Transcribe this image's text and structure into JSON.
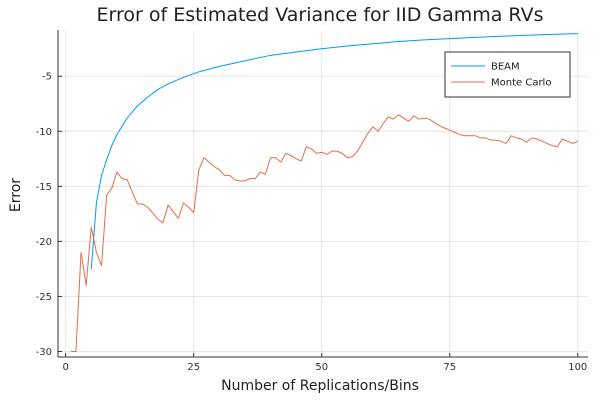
{
  "chart_data": {
    "type": "line",
    "title": "Error of Estimated Variance for IID Gamma RVs",
    "xlabel": "Number of Replications/Bins",
    "ylabel": "Error",
    "xlim": [
      -1.5,
      102
    ],
    "ylim": [
      -30.5,
      -0.8
    ],
    "xticks": [
      0,
      25,
      50,
      75,
      100
    ],
    "yticks": [
      -30,
      -25,
      -20,
      -15,
      -10,
      -5
    ],
    "grid": true,
    "legend": "top-right",
    "series": [
      {
        "name": "BEAM",
        "color": "#009AFA",
        "x": [
          5,
          6,
          7,
          8,
          9,
          10,
          12,
          14,
          16,
          18,
          20,
          23,
          26,
          30,
          35,
          40,
          45,
          50,
          55,
          60,
          65,
          70,
          75,
          80,
          85,
          90,
          95,
          100
        ],
        "y": [
          -22.5,
          -16.5,
          -14.0,
          -12.6,
          -11.3,
          -10.3,
          -8.8,
          -7.7,
          -6.9,
          -6.2,
          -5.7,
          -5.1,
          -4.6,
          -4.1,
          -3.6,
          -3.1,
          -2.8,
          -2.5,
          -2.25,
          -2.05,
          -1.85,
          -1.7,
          -1.58,
          -1.47,
          -1.37,
          -1.28,
          -1.2,
          -1.13
        ]
      },
      {
        "name": "Monte Carlo",
        "color": "#E26F46",
        "x": [
          1,
          2,
          3,
          4,
          5,
          6,
          7,
          8,
          9,
          10,
          11,
          12,
          13,
          14,
          15,
          16,
          17,
          18,
          19,
          20,
          21,
          22,
          23,
          24,
          25,
          26,
          27,
          28,
          29,
          30,
          31,
          32,
          33,
          34,
          35,
          36,
          37,
          38,
          39,
          40,
          41,
          42,
          43,
          44,
          45,
          46,
          47,
          48,
          49,
          50,
          51,
          52,
          53,
          54,
          55,
          56,
          57,
          58,
          59,
          60,
          61,
          62,
          63,
          64,
          65,
          66,
          67,
          68,
          69,
          70,
          71,
          72,
          73,
          74,
          75,
          76,
          77,
          78,
          79,
          80,
          81,
          82,
          83,
          84,
          85,
          86,
          87,
          88,
          89,
          90,
          91,
          92,
          93,
          94,
          95,
          96,
          97,
          98,
          99,
          100
        ],
        "y": [
          -30,
          -30,
          -21,
          -24,
          -18.7,
          -21,
          -22.2,
          -15.8,
          -15.2,
          -13.7,
          -14.3,
          -14.4,
          -15.5,
          -16.6,
          -16.6,
          -16.9,
          -17.4,
          -18,
          -18.3,
          -16.7,
          -17.3,
          -17.9,
          -16.5,
          -16.9,
          -17.4,
          -13.5,
          -12.4,
          -12.8,
          -13.2,
          -13.5,
          -14,
          -14,
          -14.4,
          -14.5,
          -14.5,
          -14.3,
          -14.3,
          -13.7,
          -13.9,
          -12.4,
          -12.4,
          -12.8,
          -12,
          -12.2,
          -12.5,
          -12.7,
          -11.4,
          -11.6,
          -12,
          -11.9,
          -12.1,
          -11.8,
          -11.8,
          -12,
          -12.4,
          -12.3,
          -11.8,
          -11,
          -10.2,
          -9.6,
          -10,
          -9.3,
          -8.7,
          -8.9,
          -8.5,
          -8.8,
          -9.1,
          -8.6,
          -8.9,
          -8.8,
          -8.9,
          -9.2,
          -9.5,
          -9.7,
          -9.9,
          -10.1,
          -10.3,
          -10.4,
          -10.4,
          -10.4,
          -10.6,
          -10.6,
          -10.8,
          -10.8,
          -10.9,
          -11.1,
          -10.4,
          -10.6,
          -10.7,
          -11,
          -10.6,
          -10.7,
          -10.9,
          -11.1,
          -11.3,
          -11.4,
          -10.7,
          -10.9,
          -11.1,
          -10.9
        ]
      }
    ]
  }
}
